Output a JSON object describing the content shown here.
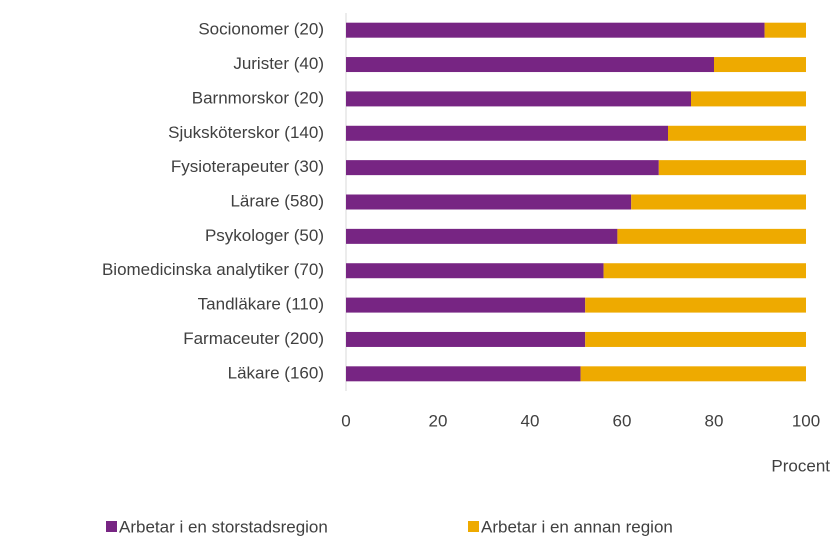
{
  "chart_data": {
    "type": "stacked-bar-horizontal",
    "categories": [
      "Socionomer (20)",
      "Jurister (40)",
      "Barnmorskor (20)",
      "Sjuksköterskor (140)",
      "Fysioterapeuter (30)",
      "Lärare (580)",
      "Psykologer (50)",
      "Biomedicinska analytiker (70)",
      "Tandläkare (110)",
      "Farmaceuter (200)",
      "Läkare (160)"
    ],
    "series": [
      {
        "name": "Arbetar i en storstadsregion",
        "color": "#772583",
        "values": [
          91,
          80,
          75,
          70,
          68,
          62,
          59,
          56,
          52,
          52,
          51
        ]
      },
      {
        "name": "Arbetar i en annan region",
        "color": "#eeaa00",
        "values": [
          9,
          20,
          25,
          30,
          32,
          38,
          41,
          44,
          48,
          48,
          49
        ]
      }
    ],
    "x_label": "Procent",
    "xlim": [
      0,
      100
    ],
    "xticks": [
      0,
      20,
      40,
      60,
      80,
      100
    ],
    "legend": "bottom"
  }
}
